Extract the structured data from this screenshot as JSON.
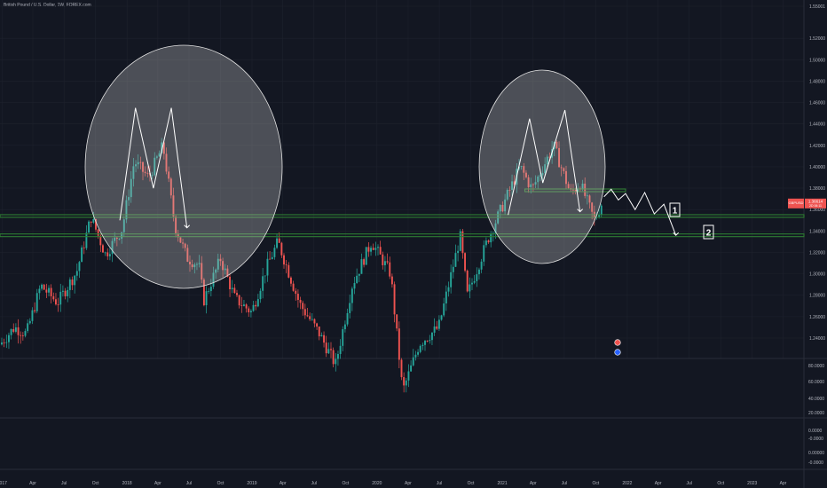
{
  "title": "British Pound / U.S. Dollar, 1W, FOREX.com",
  "colors": {
    "background": "#131722",
    "up": "#26a69a",
    "down": "#ef5350",
    "grid": "#1e222d",
    "support": "#2e7d32",
    "axisText": "#b2b5be",
    "badge": "#ef5350",
    "annotation": "#ffffff"
  },
  "chart_data": {
    "type": "candlestick",
    "symbol": "GBPUSD",
    "price_axis": {
      "ticks": [
        "1.55001",
        "1.52000",
        "1.50000",
        "1.48000",
        "1.46000",
        "1.44000",
        "1.42000",
        "1.40000",
        "1.38000",
        "1.36000",
        "1.34000",
        "1.32000",
        "1.30000",
        "1.28000",
        "1.26000",
        "1.24000"
      ]
    },
    "oscillator_axis": {
      "ticks": [
        "80.0000",
        "60.0000",
        "40.0000",
        "20.0000",
        "0.0000",
        "-0.0000",
        "0.00000",
        "-0.0000"
      ]
    },
    "time_axis": {
      "ticks": [
        "2017",
        "Apr",
        "Jul",
        "Oct",
        "2018",
        "Apr",
        "Jul",
        "Oct",
        "2019",
        "Apr",
        "Jul",
        "Oct",
        "2020",
        "Apr",
        "Jul",
        "Oct",
        "2021",
        "Apr",
        "Jul",
        "Oct",
        "2022",
        "Apr",
        "Jul",
        "Oct",
        "2023",
        "Apr"
      ]
    },
    "last_price": {
      "symbol": "GBPUSD",
      "value": "1.36614",
      "countdown": "2D 06:11"
    },
    "support_levels": [
      1.378,
      1.354,
      1.336
    ],
    "close_path": [
      {
        "t": "2016-12-26",
        "v": 1.234
      },
      {
        "t": "2017-02-06",
        "v": 1.25
      },
      {
        "t": "2017-03-13",
        "v": 1.244
      },
      {
        "t": "2017-04-24",
        "v": 1.289
      },
      {
        "t": "2017-06-12",
        "v": 1.273
      },
      {
        "t": "2017-08-07",
        "v": 1.302
      },
      {
        "t": "2017-09-18",
        "v": 1.353
      },
      {
        "t": "2017-10-30",
        "v": 1.318
      },
      {
        "t": "2017-12-18",
        "v": 1.342
      },
      {
        "t": "2018-01-22",
        "v": 1.405
      },
      {
        "t": "2018-03-05",
        "v": 1.39
      },
      {
        "t": "2018-04-16",
        "v": 1.42
      },
      {
        "t": "2018-05-21",
        "v": 1.345
      },
      {
        "t": "2018-06-25",
        "v": 1.315
      },
      {
        "t": "2018-07-30",
        "v": 1.308
      },
      {
        "t": "2018-08-13",
        "v": 1.275
      },
      {
        "t": "2018-10-01",
        "v": 1.314
      },
      {
        "t": "2018-11-12",
        "v": 1.277
      },
      {
        "t": "2018-12-31",
        "v": 1.264
      },
      {
        "t": "2019-02-11",
        "v": 1.305
      },
      {
        "t": "2019-03-18",
        "v": 1.33
      },
      {
        "t": "2019-05-20",
        "v": 1.272
      },
      {
        "t": "2019-07-15",
        "v": 1.245
      },
      {
        "t": "2019-09-02",
        "v": 1.215
      },
      {
        "t": "2019-10-21",
        "v": 1.29
      },
      {
        "t": "2019-12-16",
        "v": 1.33
      },
      {
        "t": "2020-02-10",
        "v": 1.3
      },
      {
        "t": "2020-03-16",
        "v": 1.19
      },
      {
        "t": "2020-05-04",
        "v": 1.235
      },
      {
        "t": "2020-06-29",
        "v": 1.25
      },
      {
        "t": "2020-08-31",
        "v": 1.335
      },
      {
        "t": "2020-09-21",
        "v": 1.28
      },
      {
        "t": "2020-11-23",
        "v": 1.335
      },
      {
        "t": "2021-01-04",
        "v": 1.365
      },
      {
        "t": "2021-02-22",
        "v": 1.4
      },
      {
        "t": "2021-03-29",
        "v": 1.379
      },
      {
        "t": "2021-05-31",
        "v": 1.42
      },
      {
        "t": "2021-07-19",
        "v": 1.375
      },
      {
        "t": "2021-08-16",
        "v": 1.385
      },
      {
        "t": "2021-09-27",
        "v": 1.35
      },
      {
        "t": "2021-10-18",
        "v": 1.366
      }
    ],
    "annotations": {
      "left_pattern": {
        "peaks": [
          1.455,
          1.455
        ],
        "valley": 1.38,
        "range": [
          "2017-12-04",
          "2018-07-02"
        ]
      },
      "right_pattern": {
        "peaks": [
          1.445,
          1.453
        ],
        "valley": 1.385,
        "range": [
          "2021-01-11",
          "2021-08-02"
        ]
      },
      "projection_labels": [
        "1",
        "2"
      ]
    }
  }
}
